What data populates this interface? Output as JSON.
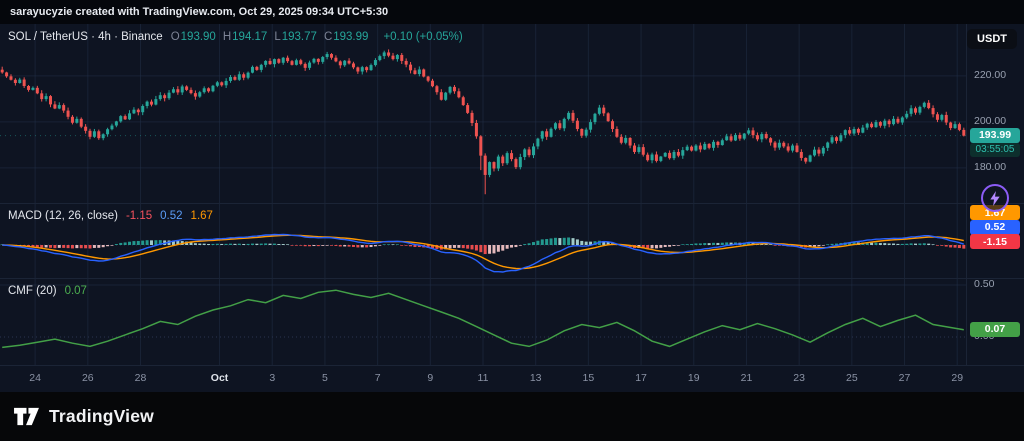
{
  "attribution": {
    "text": "sarayucyzie created with TradingView.com, Oct 29, 2025 09:34 UTC+5:30"
  },
  "symbol_header": {
    "title": "SOL / TetherUS · 4h · Binance",
    "ohlc": [
      {
        "label": "O",
        "value": "193.90"
      },
      {
        "label": "H",
        "value": "194.17"
      },
      {
        "label": "L",
        "value": "193.77"
      },
      {
        "label": "C",
        "value": "193.99"
      }
    ],
    "change": "+0.10 (+0.05%)"
  },
  "currency_button": "USDT",
  "price_scale": {
    "last_price": "193.99",
    "countdown": "03:55:05"
  },
  "macd_header": {
    "title": "MACD (12, 26, close)",
    "histogram": "-1.15",
    "macd": "0.52",
    "signal": "1.67"
  },
  "macd_badges": [
    {
      "text": "1.67",
      "bg": "#ff9800"
    },
    {
      "text": "0.52",
      "bg": "#2962ff"
    },
    {
      "text": "-1.15",
      "bg": "#f23645"
    }
  ],
  "cmf_header": {
    "title": "CMF (20)",
    "value": "0.07"
  },
  "cmf_badge": {
    "text": "0.07",
    "bg": "#43a047"
  },
  "cmf_scale": [
    {
      "text": "0.50",
      "v": 0.5
    },
    {
      "text": "0.00",
      "v": 0.0
    }
  ],
  "footer": {
    "brand": "TradingView"
  },
  "colors": {
    "up": "#26a69a",
    "down": "#ef5350",
    "macd_line": "#2962ff",
    "signal_line": "#ff9800",
    "hist_up": "#26a69a",
    "hist_up_fade": "#b2dfdb",
    "hist_down": "#ff5252",
    "hist_down_fade": "#fccbcd",
    "cmf_line": "#43a047",
    "grid": "#223049",
    "axis_text": "#8b93a5"
  },
  "chart_data": {
    "type": "candlestick",
    "symbol": "SOL/USDT (TetherUS)",
    "interval": "4h",
    "exchange": "Binance",
    "last_candle": {
      "open": 193.9,
      "high": 194.17,
      "low": 193.77,
      "close": 193.99,
      "change": 0.1,
      "change_pct": 0.05
    },
    "y_axis": {
      "min": 166,
      "max": 233,
      "ticks": [
        180,
        200,
        220
      ]
    },
    "candles_per_day": 6,
    "x_labels": [
      {
        "text": "24",
        "i": 8
      },
      {
        "text": "26",
        "i": 20
      },
      {
        "text": "28",
        "i": 32
      },
      {
        "text": "Oct",
        "i": 50
      },
      {
        "text": "3",
        "i": 62
      },
      {
        "text": "5",
        "i": 74
      },
      {
        "text": "7",
        "i": 86
      },
      {
        "text": "9",
        "i": 98
      },
      {
        "text": "11",
        "i": 110
      },
      {
        "text": "13",
        "i": 122
      },
      {
        "text": "15",
        "i": 134
      },
      {
        "text": "17",
        "i": 146
      },
      {
        "text": "19",
        "i": 158
      },
      {
        "text": "21",
        "i": 170
      },
      {
        "text": "23",
        "i": 182
      },
      {
        "text": "25",
        "i": 194
      },
      {
        "text": "27",
        "i": 206
      },
      {
        "text": "29",
        "i": 218
      }
    ],
    "closes": [
      221.5,
      219.8,
      218.3,
      216.9,
      218.4,
      215.6,
      213.9,
      214.8,
      212.4,
      209.9,
      211.2,
      207.6,
      205.8,
      207.3,
      204.9,
      202.2,
      199.6,
      201.3,
      197.9,
      196.1,
      193.5,
      195.9,
      192.9,
      194.6,
      196.8,
      198.4,
      200.2,
      202.5,
      201.1,
      203.7,
      205.3,
      204.2,
      206.9,
      208.8,
      207.5,
      209.9,
      211.6,
      210.3,
      212.7,
      214.2,
      212.8,
      215.4,
      213.9,
      212.5,
      211.0,
      212.9,
      214.6,
      213.3,
      215.7,
      217.2,
      215.9,
      217.8,
      219.5,
      218.3,
      220.7,
      219.2,
      221.4,
      223.9,
      222.6,
      224.8,
      226.5,
      225.1,
      227.3,
      225.7,
      227.9,
      226.4,
      224.8,
      226.8,
      225.2,
      223.5,
      225.8,
      227.4,
      226.1,
      228.2,
      229.5,
      227.9,
      226.3,
      224.6,
      226.6,
      225.4,
      223.7,
      221.9,
      223.8,
      222.5,
      224.7,
      226.9,
      228.6,
      230.2,
      228.8,
      227.3,
      229.1,
      226.5,
      224.9,
      222.4,
      220.8,
      222.8,
      219.7,
      217.9,
      215.5,
      212.9,
      209.6,
      212.7,
      215.2,
      213.3,
      210.7,
      207.3,
      203.9,
      199.5,
      193.7,
      185.3,
      176.9,
      182.5,
      179.7,
      184.9,
      182.0,
      186.4,
      183.8,
      180.3,
      184.7,
      188.0,
      185.5,
      189.3,
      192.7,
      195.9,
      193.5,
      197.0,
      199.4,
      197.2,
      201.3,
      203.9,
      200.5,
      196.9,
      194.0,
      196.6,
      199.9,
      203.5,
      206.2,
      203.7,
      200.3,
      196.9,
      193.5,
      190.9,
      193.0,
      189.7,
      186.9,
      189.0,
      185.7,
      183.3,
      185.8,
      183.0,
      184.9,
      186.5,
      184.2,
      186.9,
      185.3,
      187.7,
      189.2,
      187.5,
      189.7,
      188.0,
      190.4,
      188.7,
      191.3,
      189.9,
      192.0,
      193.7,
      191.9,
      194.3,
      192.7,
      194.9,
      196.3,
      194.2,
      192.4,
      194.7,
      192.9,
      191.0,
      188.8,
      190.9,
      189.3,
      187.5,
      189.7,
      186.9,
      184.3,
      182.7,
      185.4,
      187.9,
      186.2,
      188.7,
      191.0,
      193.3,
      191.7,
      194.2,
      196.4,
      194.9,
      196.9,
      195.3,
      197.5,
      199.2,
      197.7,
      199.9,
      198.3,
      200.5,
      199.0,
      201.3,
      199.7,
      201.9,
      203.5,
      205.9,
      204.0,
      206.5,
      208.3,
      206.0,
      203.3,
      200.9,
      203.0,
      199.7,
      197.3,
      199.0,
      196.5,
      193.99
    ],
    "wick_low_overrides": {
      "109": 179.0,
      "110": 168.5
    },
    "indicators": {
      "macd": {
        "fast": 12,
        "slow": 26,
        "signal": 9,
        "last_histogram": -1.15,
        "last_macd": 0.52,
        "last_signal": 1.67,
        "note": "line/histogram series computed from closes"
      },
      "cmf": {
        "period": 20,
        "last": 0.07,
        "y_ticks": [
          0.5,
          0
        ],
        "sample_step": 4,
        "values": [
          -0.1,
          -0.08,
          -0.05,
          -0.02,
          -0.06,
          -0.09,
          -0.04,
          0.02,
          0.08,
          0.15,
          0.12,
          0.2,
          0.26,
          0.3,
          0.36,
          0.33,
          0.4,
          0.37,
          0.43,
          0.45,
          0.41,
          0.38,
          0.42,
          0.36,
          0.3,
          0.24,
          0.18,
          0.1,
          0.02,
          -0.06,
          -0.09,
          -0.03,
          0.06,
          0.12,
          0.09,
          0.14,
          0.06,
          -0.04,
          -0.09,
          -0.02,
          0.05,
          0.11,
          0.07,
          0.13,
          0.08,
          0.02,
          -0.05,
          0.04,
          0.12,
          0.18,
          0.1,
          0.16,
          0.21,
          0.12,
          0.07
        ]
      }
    }
  }
}
